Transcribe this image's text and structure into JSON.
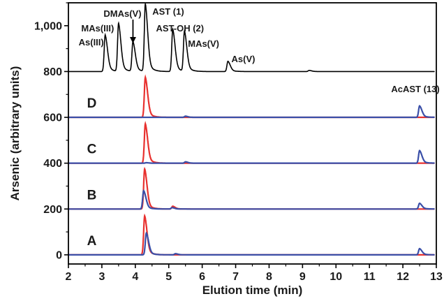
{
  "chart_data": {
    "type": "line",
    "xlabel": "Elution time (min)",
    "ylabel": "Arsenic (arbitrary units)",
    "xlim": [
      2,
      13
    ],
    "ylim": [
      -40,
      1100
    ],
    "x_ticks": [
      2,
      3,
      4,
      5,
      6,
      7,
      8,
      9,
      10,
      11,
      12,
      13
    ],
    "y_ticks": [
      0,
      200,
      400,
      600,
      800,
      1000
    ],
    "y_tick_labels": [
      "0",
      "200",
      "400",
      "600",
      "800",
      "1,000"
    ],
    "grid": false,
    "legend": "none",
    "colors": {
      "standards": "#000000",
      "red": "#e8312f",
      "blue": "#3a4fa8"
    },
    "standards": {
      "baseline": 800,
      "peaks": [
        {
          "label": "As(III)",
          "x": 3.1,
          "y": 960
        },
        {
          "label": "MAs(III)",
          "x": 3.5,
          "y": 1010
        },
        {
          "label": "DMAs(V)",
          "x": 3.93,
          "y": 930
        },
        {
          "label": "AST (1)",
          "x": 4.3,
          "y": 1095
        },
        {
          "label": "AST-OH (2)",
          "x": 5.12,
          "y": 985
        },
        {
          "label": "MAs(V)",
          "x": 5.47,
          "y": 975
        },
        {
          "label": "As(V)",
          "x": 6.77,
          "y": 845
        }
      ],
      "minor_peaks": [
        {
          "x": 9.2,
          "y": 805
        }
      ]
    },
    "samples": [
      {
        "label": "D",
        "baseline": 600,
        "red_peaks": [
          {
            "x": 4.3,
            "y": 775
          }
        ],
        "blue_peaks": [
          {
            "x": 5.5,
            "y": 605
          },
          {
            "x": 12.5,
            "y": 650
          }
        ]
      },
      {
        "label": "C",
        "baseline": 400,
        "red_peaks": [
          {
            "x": 4.3,
            "y": 572
          }
        ],
        "blue_peaks": [
          {
            "x": 4.33,
            "y": 402
          },
          {
            "x": 5.5,
            "y": 406
          },
          {
            "x": 12.5,
            "y": 455
          }
        ]
      },
      {
        "label": "B",
        "baseline": 200,
        "red_peaks": [
          {
            "x": 4.28,
            "y": 375
          },
          {
            "x": 5.12,
            "y": 212
          }
        ],
        "blue_peaks": [
          {
            "x": 4.25,
            "y": 280
          },
          {
            "x": 5.1,
            "y": 206
          },
          {
            "x": 12.5,
            "y": 225
          }
        ]
      },
      {
        "label": "A",
        "baseline": 0,
        "red_peaks": [
          {
            "x": 4.28,
            "y": 170
          }
        ],
        "blue_peaks": [
          {
            "x": 4.33,
            "y": 95
          },
          {
            "x": 5.2,
            "y": 5
          },
          {
            "x": 12.5,
            "y": 27
          }
        ]
      }
    ],
    "annotations": [
      {
        "text": "AcAST (13)",
        "x": 12.5,
        "y": 700
      }
    ]
  }
}
